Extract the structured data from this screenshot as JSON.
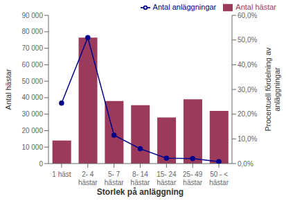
{
  "chart_data": {
    "type": "bar",
    "xlabel": "Storlek på anläggning",
    "ylabel": "Antal hästar",
    "y2label": "Procentuell fördelning av\nanläggningar",
    "categories": [
      "1 häst",
      "2- 4\nhästar",
      "5- 7\nhästar",
      "8- 14\nhästar",
      "15- 24\nhästar",
      "25- 49\nhästar",
      "50 - <\nhästar"
    ],
    "series": [
      {
        "name": "Antal hästar",
        "type": "bar",
        "color": "#9B3A5A",
        "values": [
          14000,
          76500,
          38000,
          35500,
          28000,
          39000,
          32000
        ]
      },
      {
        "name": "Antal anläggningar",
        "type": "line",
        "axis": "y2",
        "marker": "circle",
        "color": "#00008B",
        "values": [
          0.245,
          0.51,
          0.115,
          0.06,
          0.022,
          0.02,
          0.008
        ]
      }
    ],
    "ylim": [
      0,
      90000
    ],
    "yticks": [
      0,
      {
        "value": 10000,
        "label": "10 000"
      },
      {
        "value": 20000,
        "label": "20 000"
      },
      {
        "value": 30000,
        "label": "30 000"
      },
      {
        "value": 40000,
        "label": "40 000"
      },
      {
        "value": 50000,
        "label": "50 000"
      },
      {
        "value": 60000,
        "label": "60 000"
      },
      {
        "value": 70000,
        "label": "70 000"
      },
      {
        "value": 80000,
        "label": "80 000"
      },
      {
        "value": 90000,
        "label": "90 000"
      }
    ],
    "y2lim": [
      0,
      0.6
    ],
    "y2ticks": [
      {
        "value": 0,
        "label": "0,0%"
      },
      {
        "value": 0.1,
        "label": "10,0%"
      },
      {
        "value": 0.2,
        "label": "20,0%"
      },
      {
        "value": 0.3,
        "label": "30,0%"
      },
      {
        "value": 0.4,
        "label": "40,0%"
      },
      {
        "value": 0.5,
        "label": "50,0%"
      },
      {
        "value": 0.6,
        "label": "60,0%"
      }
    ],
    "grid": false,
    "legend": "upper right"
  }
}
